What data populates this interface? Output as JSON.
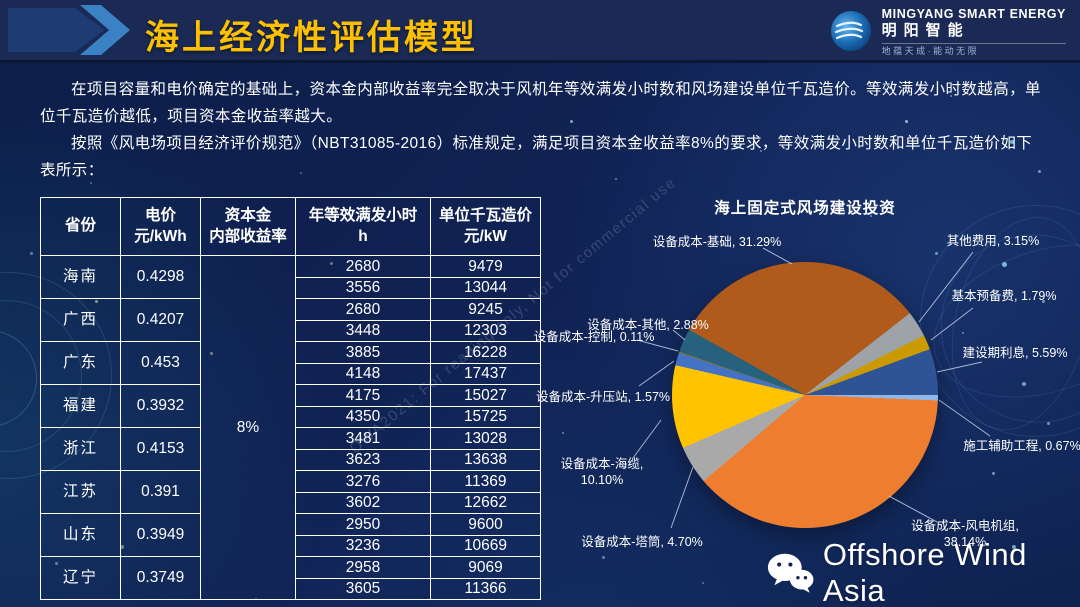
{
  "slide": {
    "title": "海上经济性评估模型",
    "logo": {
      "name_en": "MINGYANG SMART ENERGY",
      "name_cn": "明阳智能",
      "tagline": "地蕴天成·能动无限"
    },
    "paragraphs": [
      "在项目容量和电价确定的基础上，资本金内部收益率完全取决于风机年等效满发小时数和风场建设单位千瓦造价。等效满发小时数越高，单位千瓦造价越低，项目资本金收益率越大。",
      "按照《风电场项目经济评价规范》（NBT31085-2016）标准规定，满足项目资本金收益率8%的要求，等效满发小时数和单位千瓦造价如下表所示："
    ],
    "diagonal_watermark": "OWA2021: For reading only, Not for commercial use",
    "wechat_watermark": "Offshore Wind Asia"
  },
  "table": {
    "headers": [
      {
        "l1": "省份",
        "l2": ""
      },
      {
        "l1": "电价",
        "l2": "元/kWh"
      },
      {
        "l1": "资本金",
        "l2": "内部收益率"
      },
      {
        "l1": "年等效满发小时",
        "l2": "h"
      },
      {
        "l1": "单位千瓦造价",
        "l2": "元/kW"
      }
    ],
    "irr": "8%",
    "rows": [
      {
        "province": "海南",
        "price": "0.4298",
        "entries": [
          [
            "2680",
            "9479"
          ],
          [
            "3556",
            "13044"
          ]
        ]
      },
      {
        "province": "广西",
        "price": "0.4207",
        "entries": [
          [
            "2680",
            "9245"
          ],
          [
            "3448",
            "12303"
          ]
        ]
      },
      {
        "province": "广东",
        "price": "0.453",
        "entries": [
          [
            "3885",
            "16228"
          ],
          [
            "4148",
            "17437"
          ]
        ]
      },
      {
        "province": "福建",
        "price": "0.3932",
        "entries": [
          [
            "4175",
            "15027"
          ],
          [
            "4350",
            "15725"
          ]
        ]
      },
      {
        "province": "浙江",
        "price": "0.4153",
        "entries": [
          [
            "3481",
            "13028"
          ],
          [
            "3623",
            "13638"
          ]
        ]
      },
      {
        "province": "江苏",
        "price": "0.391",
        "entries": [
          [
            "3276",
            "11369"
          ],
          [
            "3602",
            "12662"
          ]
        ]
      },
      {
        "province": "山东",
        "price": "0.3949",
        "entries": [
          [
            "2950",
            "9600"
          ],
          [
            "3236",
            "10669"
          ]
        ]
      },
      {
        "province": "辽宁",
        "price": "0.3749",
        "entries": [
          [
            "2958",
            "9069"
          ],
          [
            "3605",
            "11366"
          ]
        ]
      }
    ]
  },
  "chart_data": {
    "type": "pie",
    "title": "海上固定式风场建设投资",
    "unit": "%",
    "slices": [
      {
        "name": "设备成本-基础",
        "value": 31.29,
        "color": "#B05A1C"
      },
      {
        "name": "其他费用",
        "value": 3.15,
        "color": "#9EA3A8"
      },
      {
        "name": "基本预备费",
        "value": 1.79,
        "color": "#CB9A00"
      },
      {
        "name": "建设期利息",
        "value": 5.59,
        "color": "#2F5496"
      },
      {
        "name": "施工辅助工程",
        "value": 0.67,
        "color": "#8FB8E8"
      },
      {
        "name": "设备成本-风电机组",
        "value": 38.14,
        "color": "#EE7D2F"
      },
      {
        "name": "设备成本-塔筒",
        "value": 4.7,
        "color": "#A9A9A9"
      },
      {
        "name": "设备成本-海缆",
        "value": 10.1,
        "color": "#FFC300"
      },
      {
        "name": "设备成本-升压站",
        "value": 1.57,
        "color": "#4472C4"
      },
      {
        "name": "设备成本-控制",
        "value": 0.11,
        "color": "#997300"
      },
      {
        "name": "设备成本-其他",
        "value": 2.88,
        "color": "#26617D"
      }
    ]
  }
}
